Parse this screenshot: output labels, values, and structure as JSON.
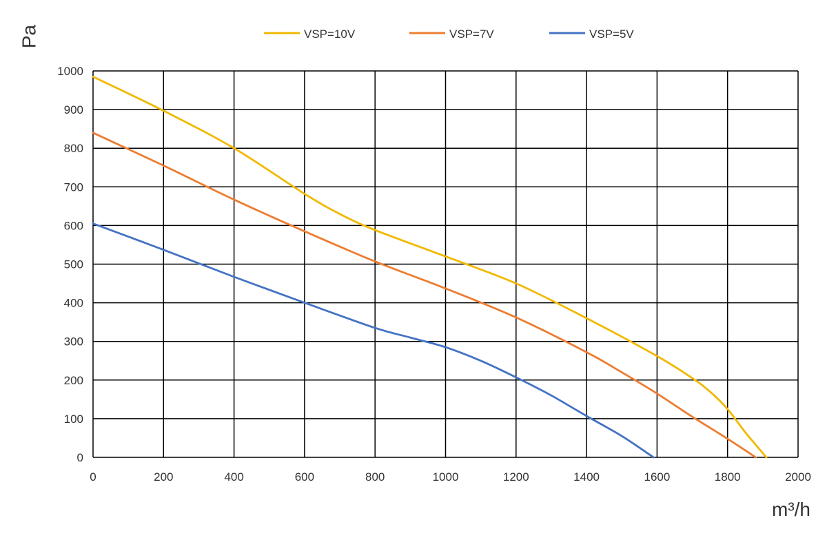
{
  "chart_data": {
    "type": "line",
    "title": "",
    "xlabel": "m³/h",
    "ylabel": "Pa",
    "xlim": [
      0,
      2000
    ],
    "ylim": [
      0,
      1000
    ],
    "x_ticks": [
      0,
      200,
      400,
      600,
      800,
      1000,
      1200,
      1400,
      1600,
      1800,
      2000
    ],
    "y_ticks": [
      0,
      100,
      200,
      300,
      400,
      500,
      600,
      700,
      800,
      900,
      1000
    ],
    "grid": true,
    "legend_position": "top",
    "series": [
      {
        "name": "VSP=10V",
        "color": "#F2B800",
        "points": [
          [
            0,
            985
          ],
          [
            200,
            897
          ],
          [
            400,
            800
          ],
          [
            600,
            682
          ],
          [
            700,
            630
          ],
          [
            800,
            588
          ],
          [
            1000,
            520
          ],
          [
            1200,
            450
          ],
          [
            1400,
            360
          ],
          [
            1600,
            262
          ],
          [
            1700,
            205
          ],
          [
            1750,
            170
          ],
          [
            1800,
            125
          ],
          [
            1850,
            65
          ],
          [
            1910,
            0
          ]
        ]
      },
      {
        "name": "VSP=7V",
        "color": "#ED7D31",
        "points": [
          [
            0,
            840
          ],
          [
            200,
            755
          ],
          [
            400,
            667
          ],
          [
            600,
            585
          ],
          [
            800,
            507
          ],
          [
            1000,
            437
          ],
          [
            1200,
            362
          ],
          [
            1400,
            272
          ],
          [
            1500,
            220
          ],
          [
            1600,
            165
          ],
          [
            1700,
            105
          ],
          [
            1800,
            48
          ],
          [
            1880,
            0
          ]
        ]
      },
      {
        "name": "VSP=5V",
        "color": "#4472C4",
        "points": [
          [
            0,
            605
          ],
          [
            200,
            537
          ],
          [
            400,
            467
          ],
          [
            600,
            400
          ],
          [
            800,
            335
          ],
          [
            900,
            310
          ],
          [
            1000,
            285
          ],
          [
            1100,
            250
          ],
          [
            1200,
            207
          ],
          [
            1300,
            160
          ],
          [
            1400,
            107
          ],
          [
            1500,
            55
          ],
          [
            1590,
            0
          ]
        ]
      }
    ]
  }
}
